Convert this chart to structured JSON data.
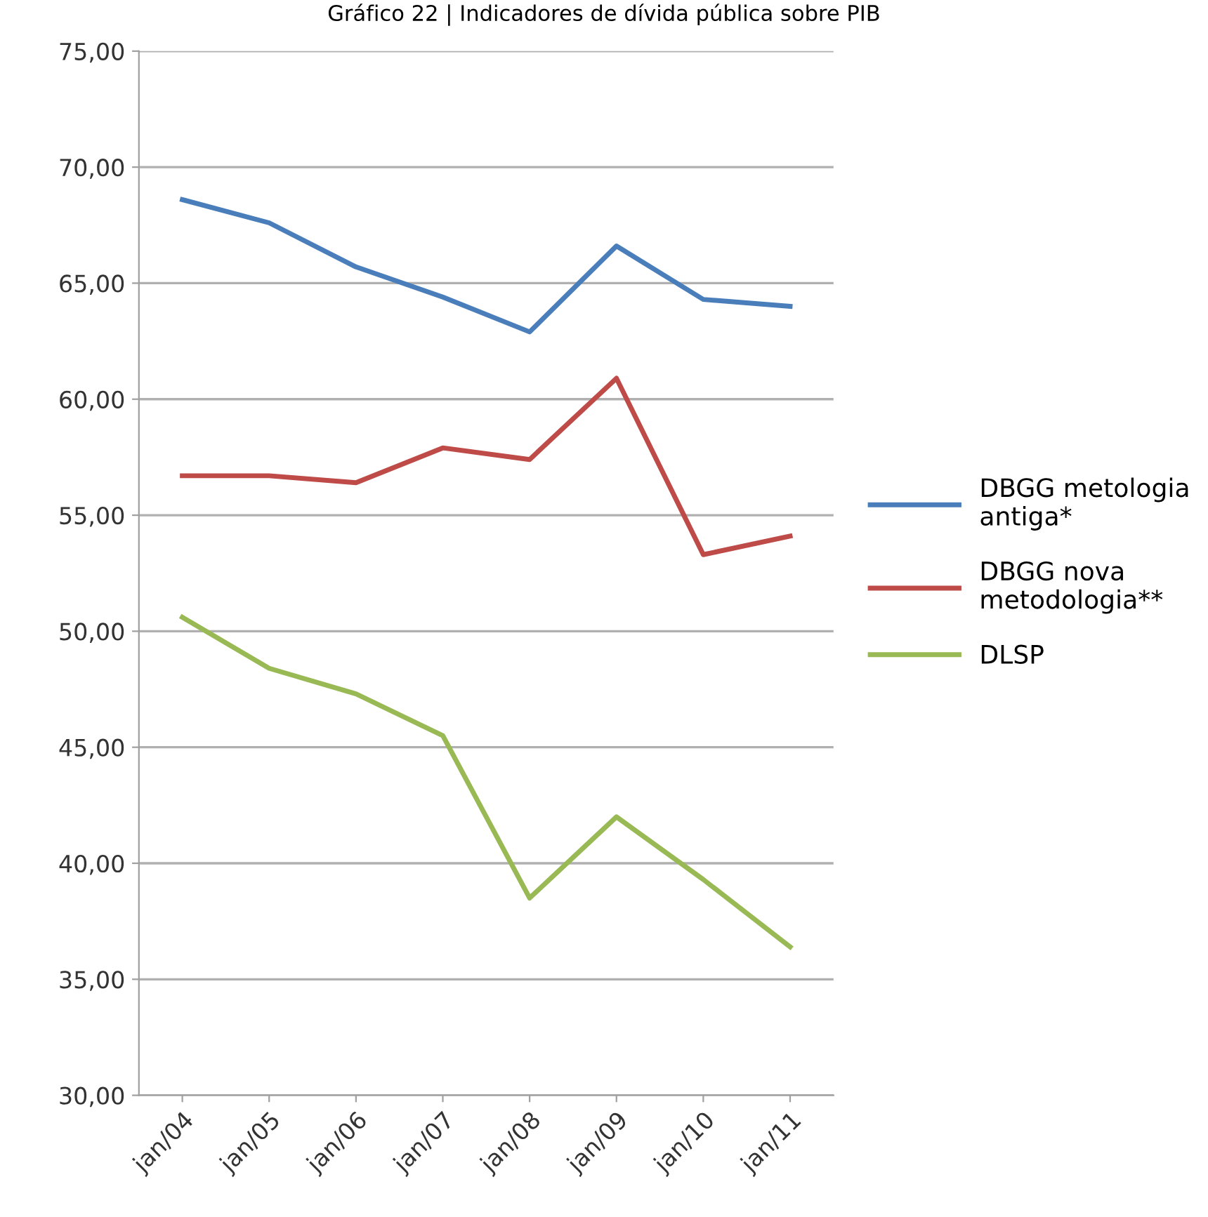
{
  "chart_data": {
    "type": "line",
    "title": "Gráfico 22 | Indicadores de dívida pública sobre PIB",
    "categories": [
      "jan/04",
      "jan/05",
      "jan/06",
      "jan/07",
      "jan/08",
      "jan/09",
      "jan/10",
      "jan/11"
    ],
    "series": [
      {
        "name": "DBGG metologia antiga*",
        "color": "#4a7ebb",
        "values": [
          68.6,
          67.6,
          65.7,
          64.4,
          62.9,
          66.6,
          64.3,
          64.0
        ]
      },
      {
        "name": "DBGG nova metodologia**",
        "color": "#be4b48",
        "values": [
          56.7,
          56.7,
          56.4,
          57.9,
          57.4,
          60.9,
          53.3,
          54.1
        ]
      },
      {
        "name": "DLSP",
        "color": "#98b954",
        "values": [
          50.6,
          48.4,
          47.3,
          45.5,
          38.5,
          42.0,
          39.3,
          36.4
        ]
      }
    ],
    "ylim": [
      30,
      75
    ],
    "yticks": [
      {
        "value": 30,
        "label": "30,00"
      },
      {
        "value": 35,
        "label": "35,00"
      },
      {
        "value": 40,
        "label": "40,00"
      },
      {
        "value": 45,
        "label": "45,00"
      },
      {
        "value": 50,
        "label": "50,00"
      },
      {
        "value": 55,
        "label": "55,00"
      },
      {
        "value": 60,
        "label": "60,00"
      },
      {
        "value": 65,
        "label": "65,00"
      },
      {
        "value": 70,
        "label": "70,00"
      },
      {
        "value": 75,
        "label": "75,00"
      }
    ],
    "grid": "y",
    "legend": "right",
    "marker": "none",
    "line_style": "solid"
  }
}
